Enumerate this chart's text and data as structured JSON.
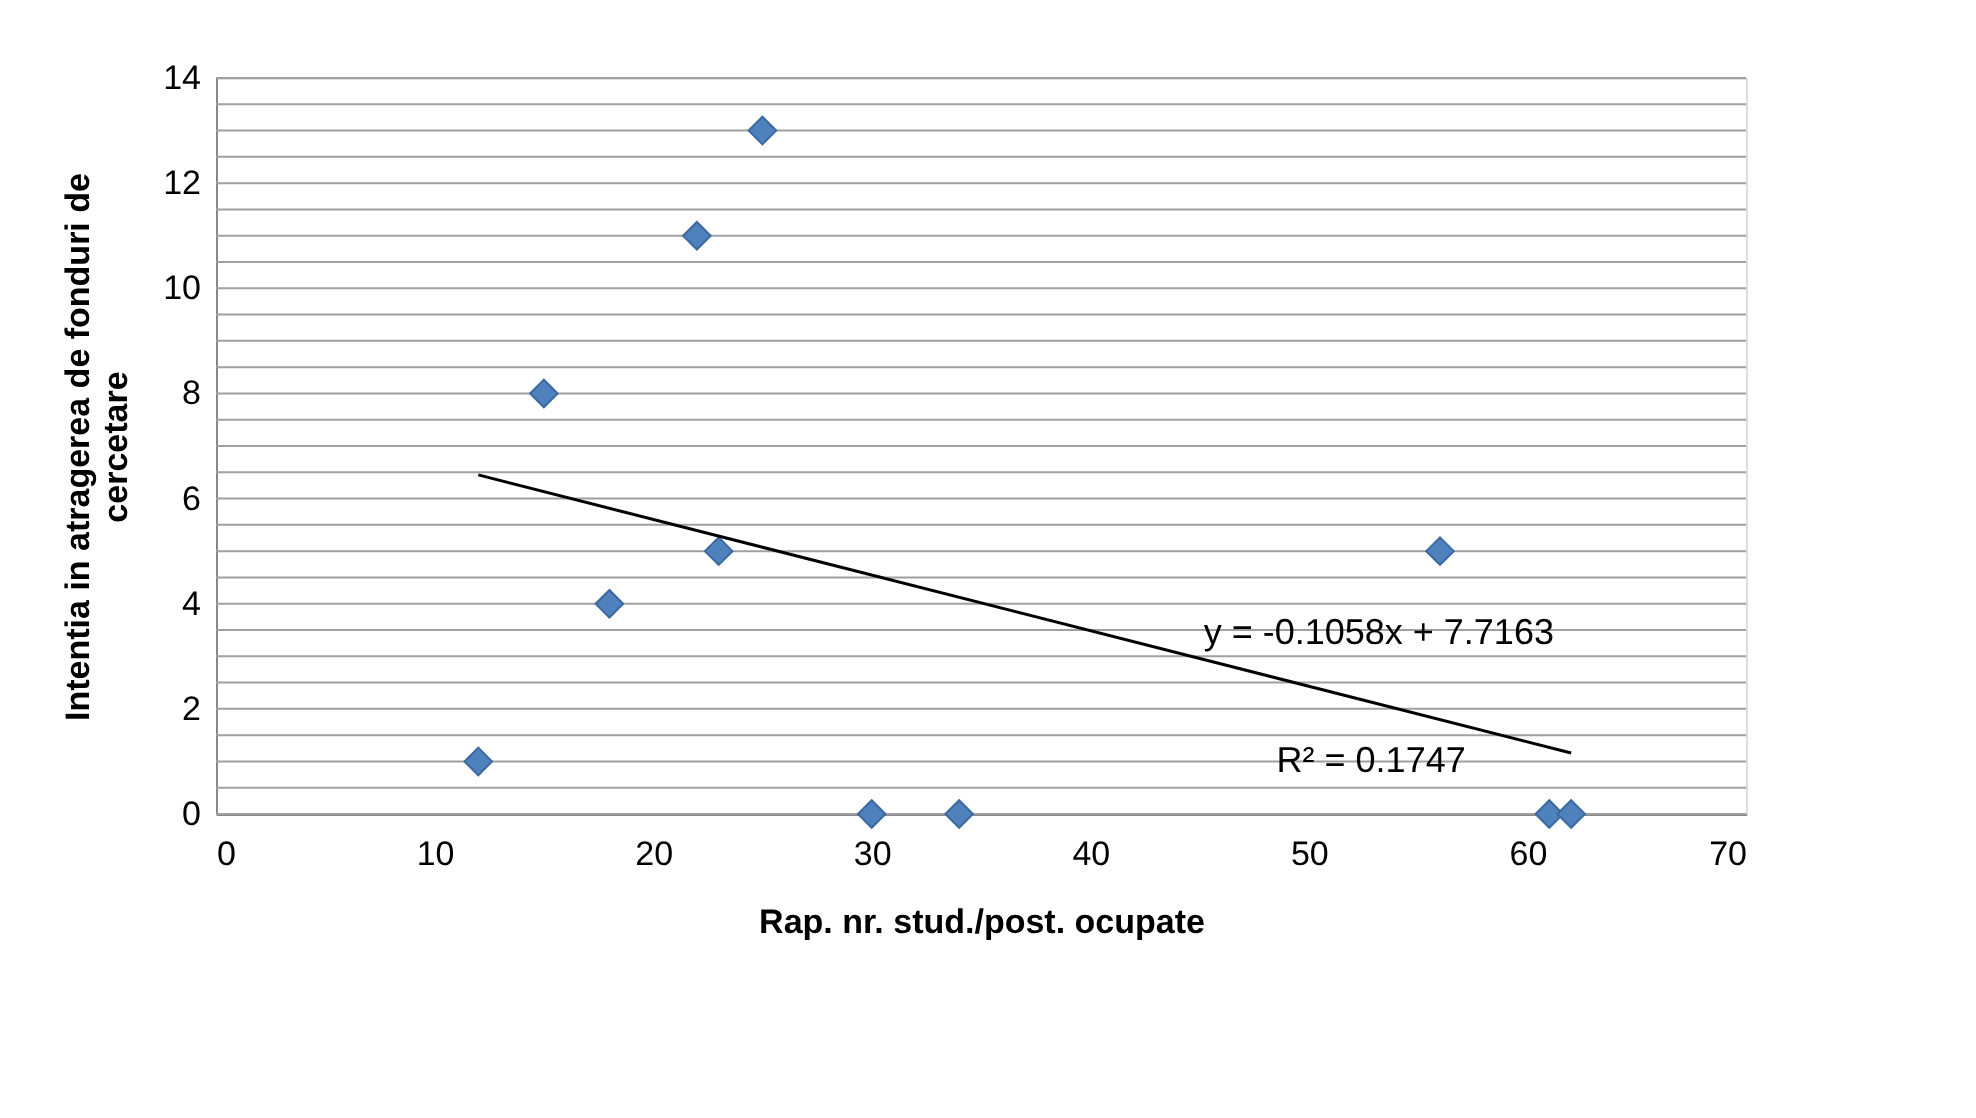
{
  "chart_data": {
    "type": "scatter",
    "xlabel": "Rap. nr. stud./post. ocupate",
    "ylabel": "Intentia  in atragerea de fonduri de cercetare",
    "series": [
      {
        "color": "#4f81bd",
        "marker": "diamond",
        "x": [
          12,
          15,
          18,
          22,
          23,
          25,
          30,
          34,
          56,
          61,
          62
        ],
        "values": [
          1,
          8,
          4,
          11,
          5,
          13,
          0,
          0,
          5,
          0,
          0
        ]
      },
      {
        "type": "line",
        "color": "#000000",
        "marker": "none",
        "line_style": "solid",
        "x": [
          12,
          62
        ],
        "values": [
          6.45,
          1.16
        ]
      }
    ],
    "annotations": [
      "y = -0.1058x + 7.7163",
      "R² = 0.1747"
    ],
    "xlim": [
      0,
      70
    ],
    "xticks": [
      0,
      10,
      20,
      30,
      40,
      50,
      60,
      70
    ],
    "ylim": [
      0,
      14
    ],
    "yticks": [
      0,
      {
        "value": 0.5,
        "label": null
      },
      {
        "value": 1,
        "label": null
      },
      {
        "value": 1.5,
        "label": null
      },
      2,
      {
        "value": 2.5,
        "label": null
      },
      {
        "value": 3,
        "label": null
      },
      {
        "value": 3.5,
        "label": null
      },
      4,
      {
        "value": 4.5,
        "label": null
      },
      {
        "value": 5,
        "label": null
      },
      {
        "value": 5.5,
        "label": null
      },
      6,
      {
        "value": 6.5,
        "label": null
      },
      {
        "value": 7,
        "label": null
      },
      {
        "value": 7.5,
        "label": null
      },
      8,
      {
        "value": 8.5,
        "label": null
      },
      {
        "value": 9,
        "label": null
      },
      {
        "value": 9.5,
        "label": null
      },
      10,
      {
        "value": 10.5,
        "label": null
      },
      {
        "value": 11,
        "label": null
      },
      {
        "value": 11.5,
        "label": null
      },
      12,
      {
        "value": 12.5,
        "label": null
      },
      {
        "value": 13,
        "label": null
      },
      {
        "value": 13.5,
        "label": null
      },
      14
    ],
    "grid": "y"
  }
}
